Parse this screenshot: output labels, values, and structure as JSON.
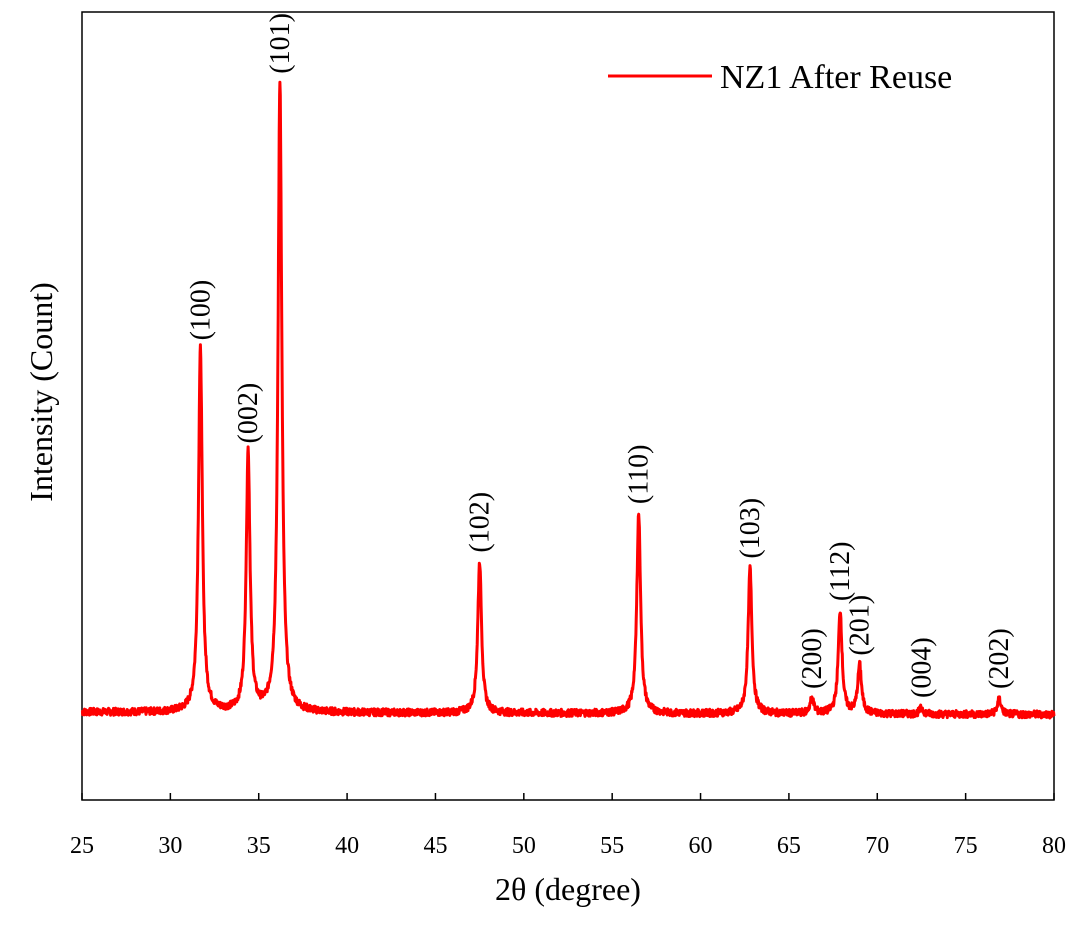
{
  "chart_data": {
    "type": "line",
    "title": "",
    "xlabel": "2θ (degree)",
    "ylabel": "Intensity (Count)",
    "xlim": [
      25,
      80
    ],
    "ylim": [
      0,
      1.3
    ],
    "x_ticks": [
      25,
      30,
      35,
      40,
      45,
      50,
      55,
      60,
      65,
      70,
      75,
      80
    ],
    "y_ticks_shown": false,
    "grid": false,
    "legend_position": "top-right",
    "series": [
      {
        "name": "NZ1 After Reuse",
        "color": "#ff0000",
        "baseline": 0.145,
        "peaks": [
          {
            "x": 31.7,
            "height": 0.6,
            "label": "(100)"
          },
          {
            "x": 34.4,
            "height": 0.43,
            "label": "(002)"
          },
          {
            "x": 36.2,
            "height": 1.04,
            "label": "(101)"
          },
          {
            "x": 47.5,
            "height": 0.25,
            "label": "(102)"
          },
          {
            "x": 56.5,
            "height": 0.33,
            "label": "(110)"
          },
          {
            "x": 62.8,
            "height": 0.24,
            "label": "(103)"
          },
          {
            "x": 66.3,
            "height": 0.025,
            "label": "(200)"
          },
          {
            "x": 67.9,
            "height": 0.17,
            "label": "(112)"
          },
          {
            "x": 69.0,
            "height": 0.08,
            "label": "(201)"
          },
          {
            "x": 72.5,
            "height": 0.01,
            "label": "(004)"
          },
          {
            "x": 76.9,
            "height": 0.025,
            "label": "(202)"
          }
        ]
      }
    ]
  }
}
